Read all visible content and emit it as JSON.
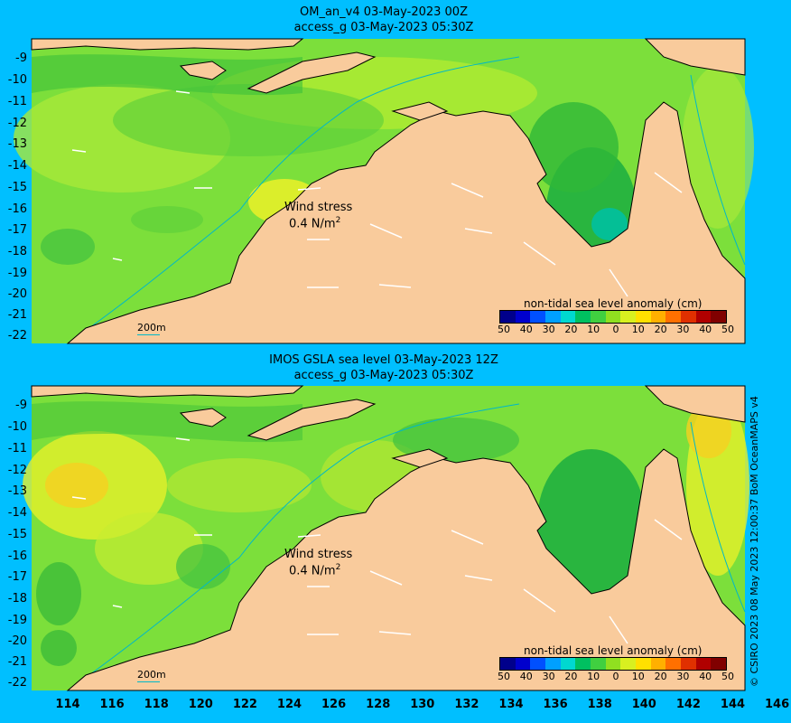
{
  "panels": [
    {
      "title_line1": "OM_an_v4  03-May-2023 00Z",
      "title_line2": "access_g 03-May-2023 05:30Z",
      "wind_label": "Wind stress",
      "wind_value": "0.4 N/m",
      "wind_exp": "2",
      "scale_bar": "200m",
      "colorbar_title": "non-tidal sea level anomaly (cm)"
    },
    {
      "title_line1": "IMOS GSLA sea level  03-May-2023 12Z",
      "title_line2": "access_g 03-May-2023 05:30Z",
      "wind_label": "Wind stress",
      "wind_value": "0.4 N/m",
      "wind_exp": "2",
      "scale_bar": "200m",
      "colorbar_title": "non-tidal sea level anomaly (cm)"
    }
  ],
  "y_ticks": [
    "-9",
    "-10",
    "-11",
    "-12",
    "-13",
    "-14",
    "-15",
    "-16",
    "-17",
    "-18",
    "-19",
    "-20",
    "-21",
    "-22"
  ],
  "x_ticks": [
    "114",
    "116",
    "118",
    "120",
    "122",
    "124",
    "126",
    "128",
    "130",
    "132",
    "134",
    "136",
    "138",
    "140",
    "142",
    "144",
    "146"
  ],
  "colorbar_ticks": [
    "50",
    "40",
    "30",
    "20",
    "10",
    "0",
    "10",
    "20",
    "30",
    "40",
    "50"
  ],
  "colorbar_colors": [
    "#00008B",
    "#0000CD",
    "#0050FF",
    "#00A0FF",
    "#00D8D0",
    "#00C060",
    "#40D040",
    "#90E020",
    "#D8F020",
    "#FFE000",
    "#FFB000",
    "#FF7000",
    "#E03000",
    "#B00000",
    "#800000"
  ],
  "colors": {
    "land": "#F9CB9C",
    "ocean_base": "#7CDF3B",
    "background": "#00BFFF",
    "coast_shelf": "#00B8C8"
  },
  "credit": "© CSIRO 2023   08 May 2023 12:00:37 BoM OceanMAPS v4"
}
